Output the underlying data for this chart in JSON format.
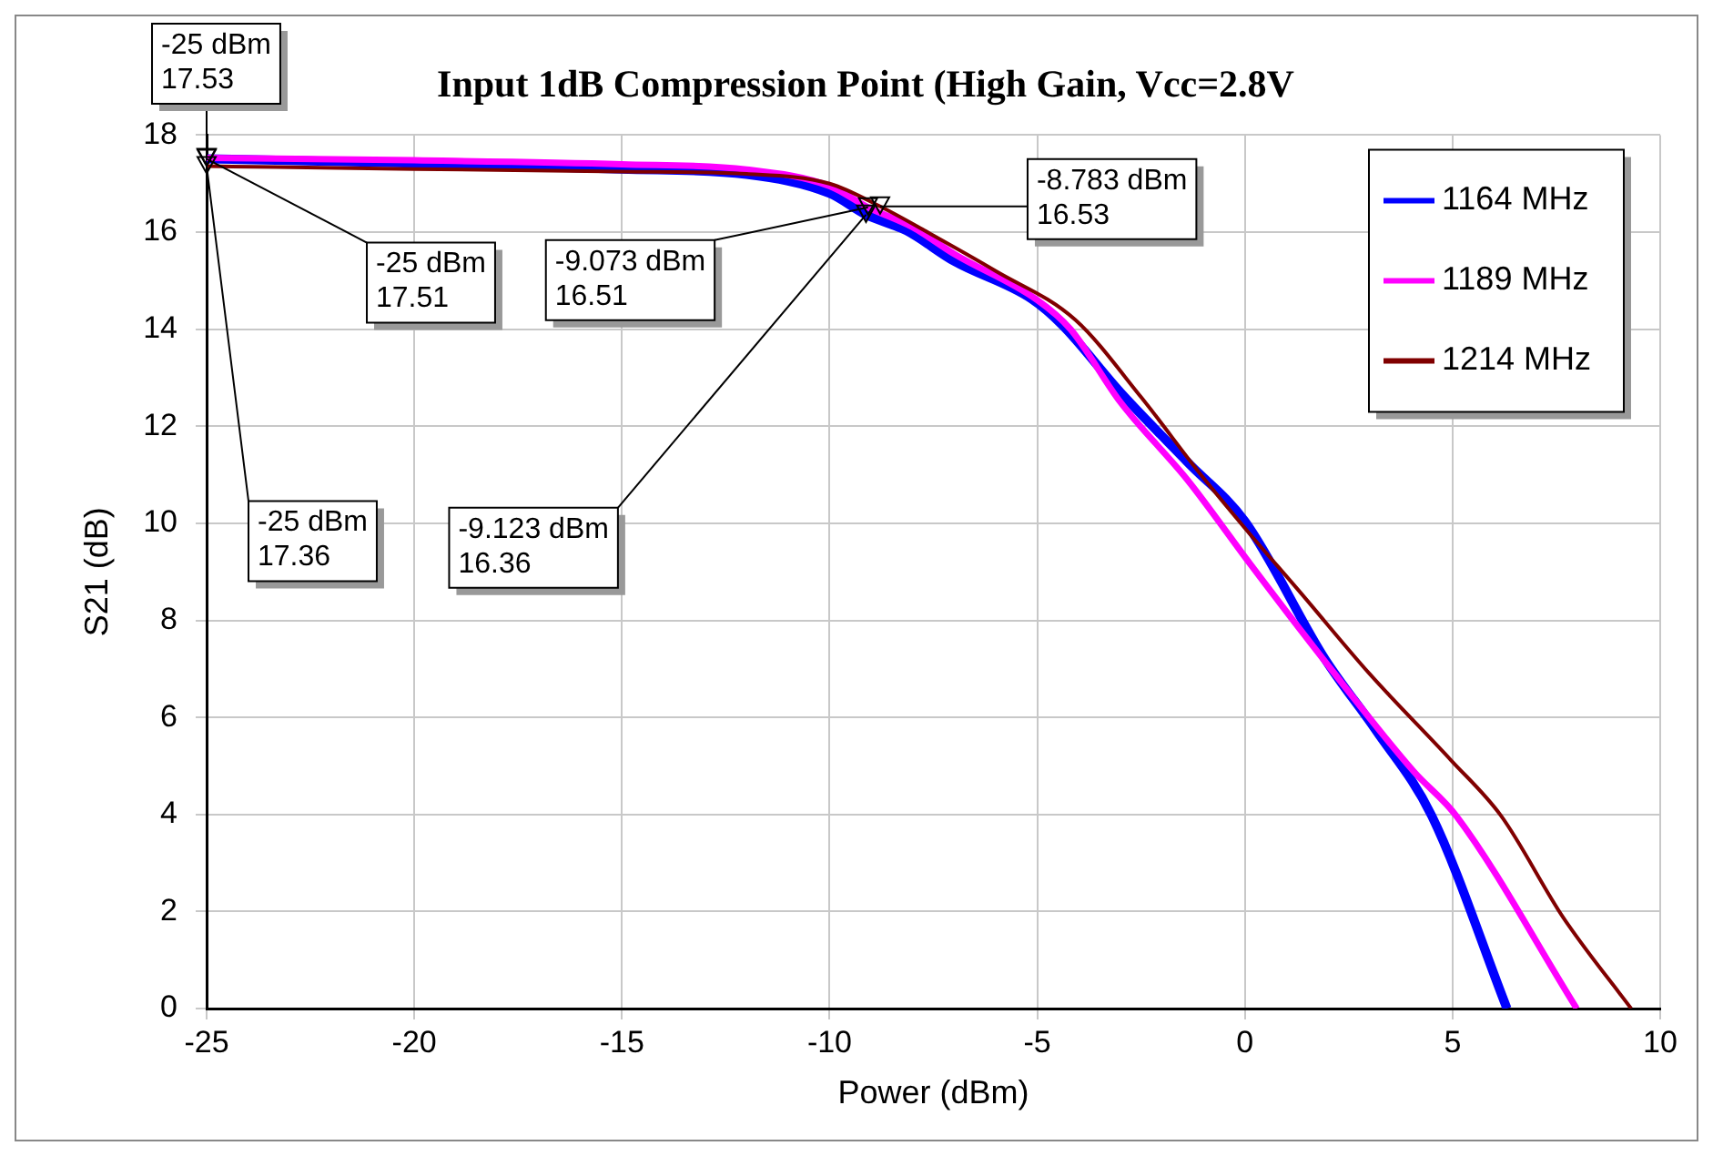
{
  "chart_data": {
    "type": "line",
    "title": "Input 1dB Compression Point (High Gain, Vcc=2.8V",
    "xlabel": "Power (dBm)",
    "ylabel": "S21 (dB)",
    "xlim": [
      -25,
      10
    ],
    "xticks": [
      -25,
      -20,
      -15,
      -10,
      -5,
      0,
      5,
      10
    ],
    "ylim": [
      0,
      18
    ],
    "yticks": [
      0,
      2,
      4,
      6,
      8,
      10,
      12,
      14,
      16,
      18
    ],
    "grid": true,
    "legend": "top right",
    "marker": "none",
    "line_style": "solid",
    "series": [
      {
        "name": "1164 MHz",
        "color": "#0000ff",
        "x": [
          -25,
          -20,
          -15,
          -12,
          -10,
          -9.123,
          -8.15,
          -7,
          -5.13,
          -4.39,
          -3,
          -1.37,
          0,
          1.93,
          3.15,
          4.5,
          6.31
        ],
        "values": [
          17.51,
          17.42,
          17.3,
          17.19,
          16.8,
          16.36,
          16.03,
          15.4,
          14.62,
          14.08,
          12.7,
          11.25,
          10.04,
          7.2,
          5.74,
          3.97,
          0
        ]
      },
      {
        "name": "1189 MHz",
        "color": "#ff00ff",
        "x": [
          -25,
          -20,
          -15,
          -12,
          -10,
          -9.073,
          -8,
          -7,
          -5,
          -4.2,
          -3,
          -1.37,
          0.12,
          1.65,
          4.06,
          5.09,
          7.99
        ],
        "values": [
          17.53,
          17.48,
          17.4,
          17.29,
          16.95,
          16.51,
          16.1,
          15.55,
          14.6,
          14.0,
          12.5,
          10.88,
          9.17,
          7.46,
          4.89,
          3.97,
          0
        ]
      },
      {
        "name": "1214 MHz",
        "color": "#800000",
        "x": [
          -25,
          -20,
          -15,
          -12,
          -10,
          -8.783,
          -7.56,
          -6,
          -4.08,
          -2.5,
          -1.06,
          0,
          1.34,
          3,
          4.96,
          6.17,
          7.67,
          9.3
        ],
        "values": [
          17.36,
          17.3,
          17.25,
          17.2,
          17.0,
          16.53,
          15.96,
          15.2,
          14.19,
          12.6,
          11.0,
          9.9,
          8.57,
          6.9,
          5.12,
          3.97,
          1.87,
          0
        ]
      }
    ],
    "annotations": [
      {
        "text": "-25 dBm\n17.53",
        "x": -25,
        "y": 17.53
      },
      {
        "text": "-25 dBm\n17.51",
        "x": -25,
        "y": 17.51
      },
      {
        "text": "-25 dBm\n17.36",
        "x": -25,
        "y": 17.36
      },
      {
        "text": "-9.073 dBm\n16.51",
        "x": -9.073,
        "y": 16.51
      },
      {
        "text": "-8.783 dBm\n16.53",
        "x": -8.783,
        "y": 16.53
      },
      {
        "text": "-9.123 dBm\n16.36",
        "x": -9.123,
        "y": 16.36
      }
    ]
  }
}
